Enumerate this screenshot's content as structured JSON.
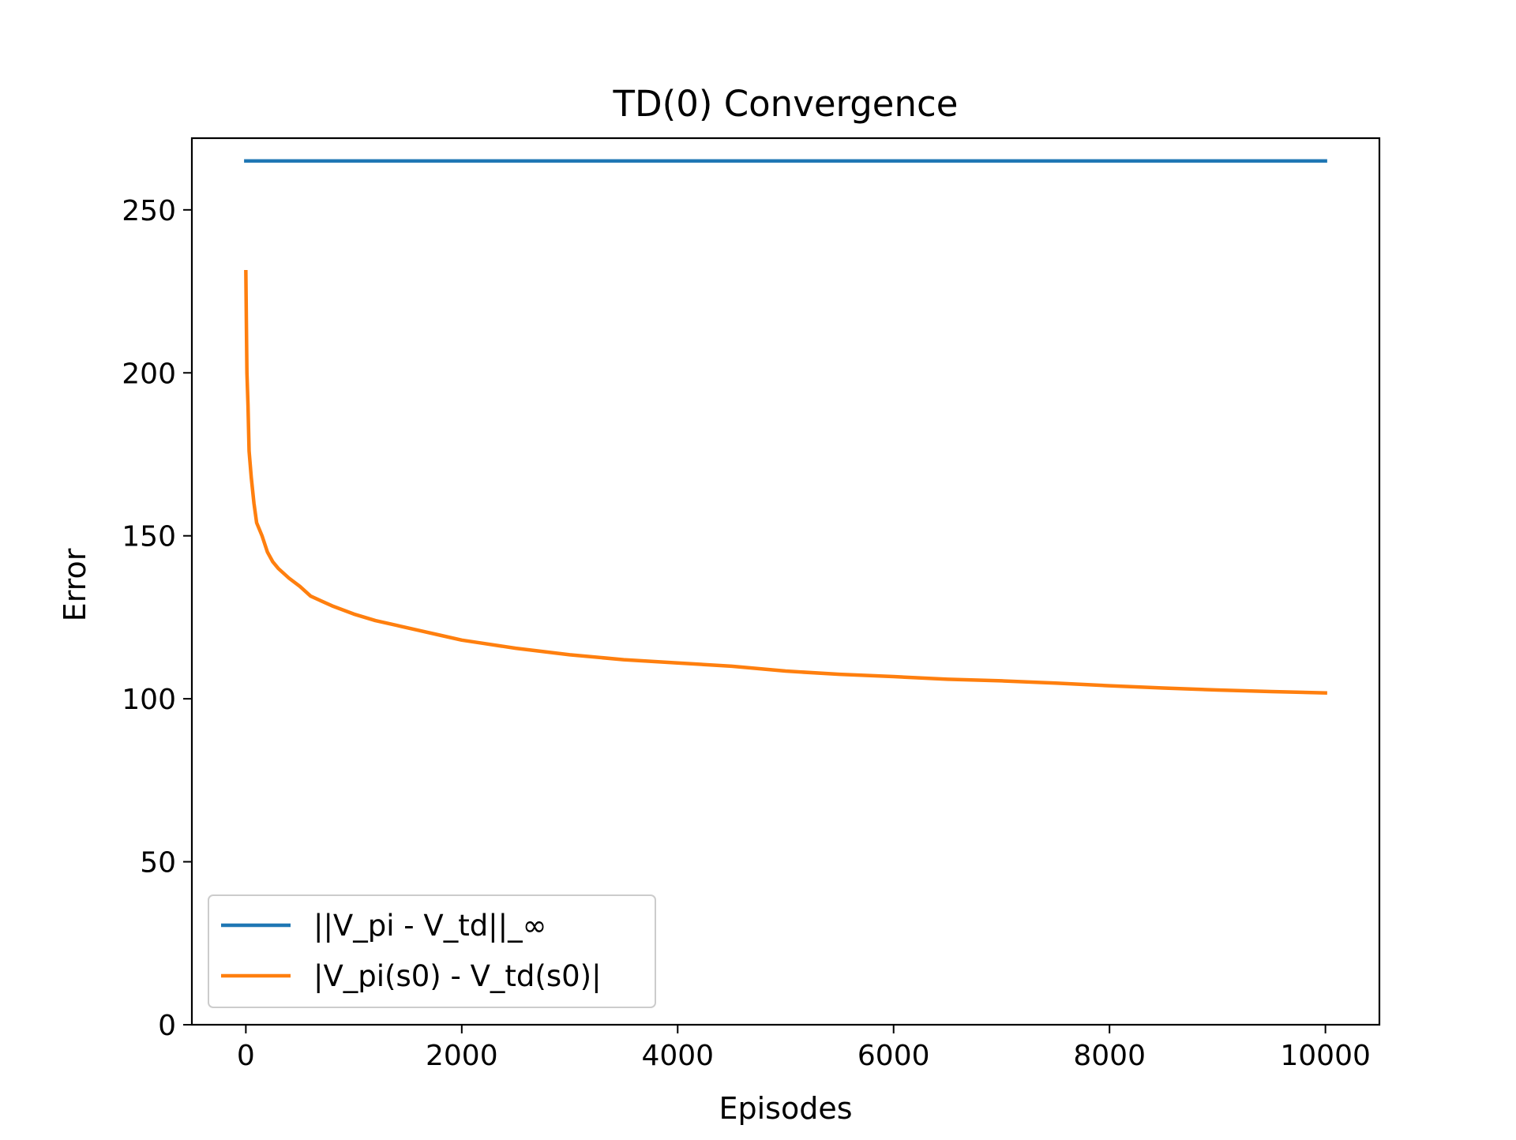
{
  "chart_data": {
    "type": "line",
    "title": "TD(0) Convergence",
    "xlabel": "Episodes",
    "ylabel": "Error",
    "xlim": [
      -500,
      10500
    ],
    "ylim": [
      0,
      272
    ],
    "xticks": [
      0,
      2000,
      4000,
      6000,
      8000,
      10000
    ],
    "yticks": [
      0,
      50,
      100,
      150,
      200,
      250
    ],
    "grid": false,
    "legend": {
      "placement": "lower-left"
    },
    "series": [
      {
        "name": "||V_pi - V_td||_∞",
        "color": "#1f77b4",
        "x": [
          0,
          10000
        ],
        "y": [
          265,
          265
        ]
      },
      {
        "name": "|V_pi(s0) - V_td(s0)|",
        "color": "#ff7f0e",
        "x": [
          0,
          5,
          10,
          20,
          30,
          50,
          75,
          100,
          150,
          200,
          250,
          300,
          400,
          500,
          600,
          700,
          800,
          1000,
          1200,
          1400,
          1600,
          1800,
          2000,
          2200,
          2500,
          3000,
          3500,
          4000,
          4500,
          5000,
          5500,
          6000,
          6500,
          7000,
          7500,
          8000,
          8500,
          9000,
          9500,
          10000
        ],
        "y": [
          231,
          215,
          200,
          190,
          176,
          168,
          160,
          154,
          150,
          145,
          142,
          140,
          137,
          134.5,
          131.5,
          130,
          128.5,
          126,
          124,
          122.5,
          121,
          119.5,
          118,
          117,
          115.5,
          113.5,
          112,
          111,
          110,
          108.5,
          107.5,
          106.8,
          106,
          105.5,
          104.8,
          104,
          103.3,
          102.7,
          102.2,
          101.8
        ]
      }
    ]
  }
}
